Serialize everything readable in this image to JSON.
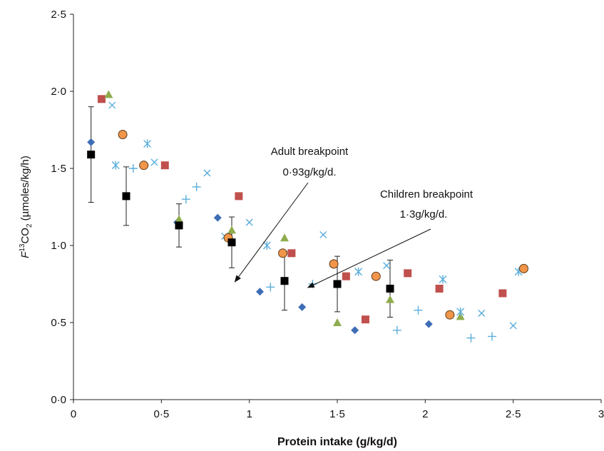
{
  "chart_data": {
    "type": "scatter",
    "title": "",
    "xlabel": "Protein intake (g/kg/d)",
    "ylabel": {
      "prefix": "F",
      "sup": "13",
      "mid": "CO",
      "sub": "2",
      "suffix": " (µmoles/kg/h)"
    },
    "xlim": [
      0,
      3
    ],
    "ylim": [
      0,
      2.5
    ],
    "x_ticks": [
      0,
      0.5,
      1,
      1.5,
      2,
      2.5,
      3
    ],
    "x_tick_labels": [
      "0",
      "0·5",
      "1",
      "1·5",
      "2",
      "2·5",
      "3"
    ],
    "y_ticks": [
      0,
      0.5,
      1,
      1.5,
      2,
      2.5
    ],
    "y_tick_labels": [
      "0·0",
      "0·5",
      "1·0",
      "1·5",
      "2·0",
      "2·5"
    ],
    "grid": false,
    "legend": "none",
    "series": [
      {
        "marker": "diamond",
        "color": "#3e6db5",
        "points": [
          [
            0.1,
            1.67
          ],
          [
            0.59,
            1.15
          ],
          [
            0.82,
            1.18
          ],
          [
            1.06,
            0.7
          ],
          [
            1.3,
            0.6
          ],
          [
            1.6,
            0.45
          ],
          [
            2.02,
            0.49
          ]
        ]
      },
      {
        "marker": "square",
        "color": "#c0504d",
        "points": [
          [
            0.16,
            1.95
          ],
          [
            0.52,
            1.52
          ],
          [
            0.94,
            1.32
          ],
          [
            1.24,
            0.95
          ],
          [
            1.55,
            0.8
          ],
          [
            1.66,
            0.52
          ],
          [
            1.9,
            0.82
          ],
          [
            2.08,
            0.72
          ],
          [
            2.44,
            0.69
          ]
        ]
      },
      {
        "marker": "triangle",
        "color": "#8fac4d",
        "points": [
          [
            0.2,
            1.98
          ],
          [
            0.6,
            1.17
          ],
          [
            0.9,
            1.1
          ],
          [
            1.2,
            1.05
          ],
          [
            1.5,
            0.5
          ],
          [
            1.8,
            0.65
          ],
          [
            2.2,
            0.54
          ]
        ]
      },
      {
        "marker": "x",
        "color": "#5aaedb",
        "points": [
          [
            0.22,
            1.91
          ],
          [
            0.46,
            1.54
          ],
          [
            0.76,
            1.47
          ],
          [
            0.86,
            1.06
          ],
          [
            1.0,
            1.15
          ],
          [
            1.42,
            1.07
          ],
          [
            1.78,
            0.87
          ],
          [
            2.32,
            0.56
          ],
          [
            2.5,
            0.48
          ]
        ]
      },
      {
        "marker": "asterisk",
        "color": "#5aaedb",
        "points": [
          [
            0.24,
            1.52
          ],
          [
            0.42,
            1.66
          ],
          [
            1.1,
            1.0
          ],
          [
            1.62,
            0.83
          ],
          [
            2.1,
            0.78
          ],
          [
            2.2,
            0.57
          ],
          [
            2.53,
            0.83
          ]
        ]
      },
      {
        "marker": "circle",
        "color": "#f0954a",
        "points": [
          [
            0.28,
            1.72
          ],
          [
            0.4,
            1.52
          ],
          [
            0.88,
            1.05
          ],
          [
            1.19,
            0.95
          ],
          [
            1.48,
            0.88
          ],
          [
            1.72,
            0.8
          ],
          [
            2.14,
            0.55
          ],
          [
            2.56,
            0.85
          ]
        ]
      },
      {
        "marker": "plus",
        "color": "#5aaedb",
        "points": [
          [
            0.34,
            1.5
          ],
          [
            0.64,
            1.3
          ],
          [
            0.7,
            1.38
          ],
          [
            1.12,
            0.73
          ],
          [
            1.36,
            0.75
          ],
          [
            1.84,
            0.45
          ],
          [
            1.96,
            0.58
          ],
          [
            2.26,
            0.4
          ],
          [
            2.38,
            0.41
          ]
        ]
      }
    ],
    "mean_series": {
      "marker": "square",
      "color": "#000000",
      "points": [
        {
          "x": 0.1,
          "y": 1.59,
          "err": 0.31
        },
        {
          "x": 0.3,
          "y": 1.32,
          "err": 0.19
        },
        {
          "x": 0.6,
          "y": 1.13,
          "err": 0.14
        },
        {
          "x": 0.9,
          "y": 1.02,
          "err": 0.165
        },
        {
          "x": 1.2,
          "y": 0.77,
          "err": 0.19
        },
        {
          "x": 1.5,
          "y": 0.75,
          "err": 0.18
        },
        {
          "x": 1.8,
          "y": 0.72,
          "err": 0.185
        }
      ]
    },
    "annotations": [
      {
        "lines": [
          "Adult breakpoint",
          "0·93g/kg/d."
        ],
        "arrow_to": [
          0.93,
          0.78
        ]
      },
      {
        "lines": [
          "Children breakpoint",
          "1·3g/kg/d."
        ],
        "arrow_to": [
          1.3,
          0.78
        ]
      }
    ]
  }
}
